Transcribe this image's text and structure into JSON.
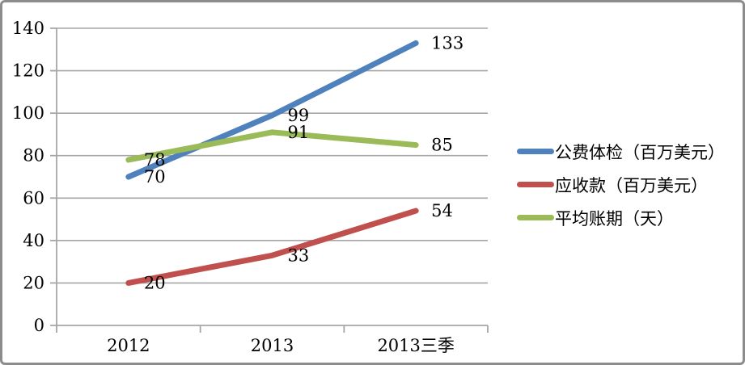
{
  "window": {
    "background": "#ffffff",
    "border_color": "#8c8c8c"
  },
  "chart_data": {
    "type": "line",
    "title": "",
    "xlabel": "",
    "ylabel": "",
    "categories": [
      "2012",
      "2013",
      "2013三季"
    ],
    "series": [
      {
        "name": "公费体检（百万美元）",
        "color": "#4F81BD",
        "values": [
          70,
          99,
          133
        ]
      },
      {
        "name": "应收款（百万美元）",
        "color": "#C0504D",
        "values": [
          20,
          33,
          54
        ]
      },
      {
        "name": "平均账期（天）",
        "color": "#9BBB59",
        "values": [
          78,
          91,
          85
        ]
      }
    ],
    "ylim": [
      0,
      140
    ],
    "yticks": [
      0,
      20,
      40,
      60,
      80,
      100,
      120,
      140
    ],
    "grid": "horizontal",
    "gridline_color": "#A6A6A6",
    "axis_color": "#A6A6A6",
    "data_label_color": "#000000",
    "legend_position": "right",
    "data_labels": true
  }
}
